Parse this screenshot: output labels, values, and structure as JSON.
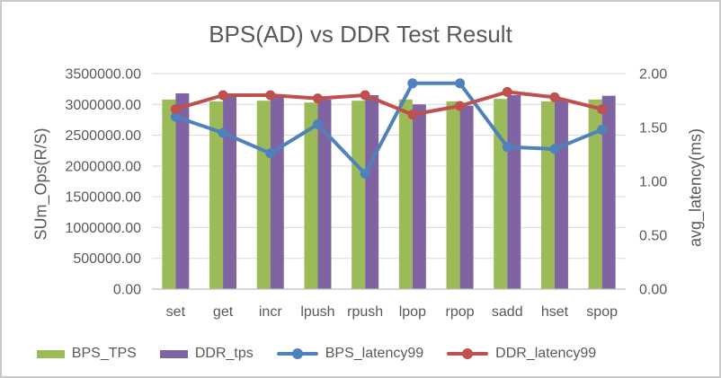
{
  "chart_data": {
    "type": "combo",
    "title": "BPS(AD) vs DDR Test Result",
    "categories": [
      "set",
      "get",
      "incr",
      "lpush",
      "rpush",
      "lpop",
      "rpop",
      "sadd",
      "hset",
      "spop"
    ],
    "series": [
      {
        "name": "BPS_TPS",
        "kind": "bar",
        "axis": "left",
        "color": "#9BBB59",
        "values": [
          3080000,
          3050000,
          3060000,
          3030000,
          3060000,
          3080000,
          3050000,
          3090000,
          3050000,
          3080000
        ]
      },
      {
        "name": "DDR_tps",
        "kind": "bar",
        "axis": "left",
        "color": "#8064A2",
        "values": [
          3180000,
          3140000,
          3140000,
          3080000,
          3150000,
          3000000,
          2980000,
          3150000,
          3080000,
          3140000
        ]
      },
      {
        "name": "BPS_latency99",
        "kind": "line",
        "axis": "right",
        "color": "#4F81BD",
        "values": [
          1.6,
          1.45,
          1.26,
          1.53,
          1.07,
          1.91,
          1.91,
          1.32,
          1.3,
          1.48
        ]
      },
      {
        "name": "DDR_latency99",
        "kind": "line",
        "axis": "right",
        "color": "#C0504D",
        "values": [
          1.67,
          1.8,
          1.8,
          1.77,
          1.8,
          1.62,
          1.7,
          1.83,
          1.78,
          1.67
        ]
      }
    ],
    "left_axis": {
      "label": "SUm_Ops(R/S)",
      "min": 0,
      "max": 3500000,
      "step": 500000,
      "tick_labels": [
        "0.00",
        "500000.00",
        "1000000.00",
        "1500000.00",
        "2000000.00",
        "2500000.00",
        "3000000.00",
        "3500000.00"
      ]
    },
    "right_axis": {
      "label": "avg_latency(ms)",
      "min": 0,
      "max": 2,
      "step": 0.5,
      "tick_labels": [
        "0.00",
        "0.50",
        "1.00",
        "1.50",
        "2.00"
      ]
    },
    "grid": true,
    "legend_position": "bottom",
    "colors": {
      "text": "#595959",
      "gridline": "#D9D9D9",
      "axis_line": "#BFBFBF",
      "background": "#FFFFFF"
    }
  }
}
